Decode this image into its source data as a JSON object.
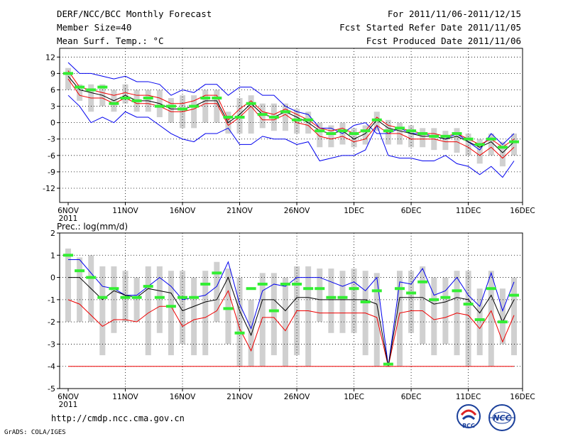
{
  "header": {
    "title": "DERF/NCC/BCC Monthly Forecast",
    "member_size": "Member Size=40",
    "variable": "Mean Surf. Temp.: °C",
    "period": "For 2011/11/06-2011/12/15",
    "started": "Fcst Started Refer Date 2011/11/05",
    "produced": "Fcst Produced Date 2011/11/06"
  },
  "footer": {
    "url": "http://cmdp.ncc.cma.gov.cn",
    "grads": "GrADS: COLA/IGES"
  },
  "logos": {
    "bcc": "BCC",
    "ncc": "NCC"
  },
  "colors": {
    "max": "#0000ee",
    "mean": "#000000",
    "p": "#ee0000",
    "obs": "#33ee33",
    "box": "#d0d0d0"
  },
  "chart_data": [
    {
      "type": "line",
      "title": "Mean Surf. Temp.: °C",
      "ylabel": "°C",
      "ylim": [
        -14.6,
        13.6
      ],
      "yticks": [
        12,
        9,
        6,
        3,
        0,
        -3,
        -6,
        -9,
        -12
      ],
      "xlim": [
        0,
        39
      ],
      "xticks": [
        {
          "pos": 0,
          "label": "6NOV",
          "sub": "2011"
        },
        {
          "pos": 5,
          "label": "11NOV"
        },
        {
          "pos": 10,
          "label": "16NOV"
        },
        {
          "pos": 15,
          "label": "21NOV"
        },
        {
          "pos": 20,
          "label": "26NOV"
        },
        {
          "pos": 25,
          "label": "1DEC"
        },
        {
          "pos": 30,
          "label": "6DEC"
        },
        {
          "pos": 35,
          "label": "11DEC"
        },
        {
          "pos": 40,
          "label": "16DEC"
        }
      ],
      "series": [
        {
          "name": "max",
          "values": [
            11,
            9,
            9,
            8.5,
            8,
            8.5,
            7.5,
            7.5,
            7,
            5,
            6,
            5.5,
            7,
            7,
            5,
            6.5,
            6.5,
            5,
            5,
            3,
            2,
            1.5,
            -1,
            -1,
            -2,
            -0.5,
            0,
            -2,
            -2,
            -1,
            -2,
            -2,
            -2.5,
            -3,
            -2,
            -3.5,
            -5,
            -2,
            -4,
            -2
          ]
        },
        {
          "name": "mean",
          "values": [
            8.5,
            6,
            5.5,
            5,
            4,
            5,
            4,
            4,
            3.5,
            2.5,
            2.5,
            3,
            4,
            4,
            0,
            1.5,
            3.5,
            1.5,
            1,
            2,
            1,
            0,
            -1.5,
            -2,
            -1.5,
            -3,
            -2,
            0.5,
            -1,
            -1.5,
            -2,
            -2.5,
            -2.5,
            -3,
            -2.5,
            -3.5,
            -4.5,
            -3.5,
            -5.5,
            -3.5
          ]
        },
        {
          "name": "p_upper",
          "values": [
            9.5,
            6.5,
            6,
            5.5,
            5,
            5.5,
            5,
            5,
            4.5,
            3.5,
            3.5,
            4,
            5,
            5,
            0.5,
            2.5,
            4,
            2,
            1.5,
            2.5,
            1.5,
            0.5,
            -1,
            -1.5,
            -1,
            -2,
            -1.5,
            1,
            -0.5,
            -1,
            -1.5,
            -2,
            -2,
            -2.5,
            -2,
            -3,
            -4,
            -3,
            -4.5,
            -3
          ]
        },
        {
          "name": "p_lower",
          "values": [
            8,
            5,
            4.5,
            4.5,
            3.5,
            4.5,
            3.5,
            3.5,
            3,
            2,
            2,
            2.5,
            3.5,
            3.5,
            -0.5,
            1,
            3,
            0.5,
            0.5,
            1.5,
            0,
            -0.5,
            -2.5,
            -3,
            -2.5,
            -3.5,
            -3,
            -0.5,
            -2,
            -2,
            -3,
            -3,
            -3,
            -3.5,
            -3.5,
            -4.5,
            -6,
            -4.5,
            -6.5,
            -4.5
          ]
        },
        {
          "name": "min",
          "values": [
            5,
            3,
            0,
            1,
            0,
            2,
            1,
            1,
            -0.5,
            -2,
            -3,
            -3.5,
            -2,
            -2,
            -1,
            -4,
            -4,
            -2.5,
            -3,
            -3,
            -4,
            -3.5,
            -7,
            -6.5,
            -6,
            -6,
            -5,
            -0.5,
            -6,
            -6.5,
            -6.5,
            -7,
            -7,
            -6,
            -7.5,
            -8,
            -9.5,
            -8,
            -10,
            -7
          ]
        },
        {
          "name": "obs",
          "values": [
            9,
            6.5,
            6,
            6.5,
            3.5,
            4.5,
            4,
            4.5,
            3,
            3,
            2.5,
            3,
            4.5,
            4.5,
            1,
            1,
            3.5,
            1.5,
            1,
            2,
            0.5,
            0.5,
            -1.5,
            -2,
            -1.5,
            -2,
            -1.5,
            0.5,
            -1.5,
            -1,
            -1.5,
            -2,
            -2.5,
            -2.5,
            -2,
            -3,
            -4,
            -3,
            -4.5,
            -3.5
          ]
        },
        {
          "name": "box_top",
          "values": [
            10,
            7,
            7,
            7,
            6,
            7,
            6,
            6,
            6,
            4.5,
            5,
            5,
            6,
            6,
            2,
            4.5,
            5,
            3.5,
            3.5,
            3.5,
            2.5,
            2,
            0,
            -0.5,
            0,
            -1,
            -0.5,
            2,
            0.5,
            0,
            -0.5,
            -1,
            -1,
            -1.5,
            -1,
            -2,
            -3,
            -2,
            -3.5,
            -2
          ]
        },
        {
          "name": "box_bottom",
          "values": [
            6,
            4,
            2,
            3,
            2,
            3.5,
            2,
            2,
            1,
            0,
            -1,
            -1,
            0,
            0,
            -2,
            -2,
            -2,
            -1,
            -1.5,
            -1.5,
            -2,
            -2,
            -4.5,
            -4.5,
            -4,
            -4.5,
            -4,
            -1.5,
            -4,
            -4,
            -4.5,
            -4.5,
            -5,
            -5,
            -5.5,
            -6,
            -7.5,
            -6,
            -8,
            -6
          ]
        }
      ]
    },
    {
      "type": "line",
      "title": "Prec.: log(mm/d)",
      "ylabel": "log(mm/d)",
      "ylim": [
        -5,
        2
      ],
      "yticks": [
        2,
        1,
        0,
        -1,
        -2,
        -3,
        -4,
        -5
      ],
      "xlim": [
        0,
        39
      ],
      "xticks": [
        {
          "pos": 0,
          "label": "6NOV",
          "sub": "2011"
        },
        {
          "pos": 5,
          "label": "11NOV"
        },
        {
          "pos": 10,
          "label": "16NOV"
        },
        {
          "pos": 15,
          "label": "21NOV"
        },
        {
          "pos": 20,
          "label": "26NOV"
        },
        {
          "pos": 25,
          "label": "1DEC"
        },
        {
          "pos": 30,
          "label": "6DEC"
        },
        {
          "pos": 35,
          "label": "11DEC"
        },
        {
          "pos": 40,
          "label": "16DEC"
        }
      ],
      "series": [
        {
          "name": "max",
          "values": [
            0.8,
            0.8,
            0.2,
            -0.4,
            -0.5,
            -0.8,
            -0.8,
            -0.4,
            0,
            -0.4,
            -1,
            -0.9,
            -0.8,
            -0.4,
            0.7,
            -1.2,
            -2.3,
            -0.6,
            -0.3,
            -0.4,
            0,
            0,
            0,
            -0.2,
            -0.4,
            -0.2,
            -0.6,
            0,
            -4,
            -0.2,
            -0.3,
            0.4,
            -0.8,
            -0.6,
            0,
            -0.8,
            -1.3,
            0.2,
            -1.5,
            -0.2
          ]
        },
        {
          "name": "mean",
          "values": [
            0,
            0,
            -0.5,
            -1,
            -0.6,
            -0.8,
            -0.9,
            -0.5,
            -0.6,
            -0.7,
            -1.5,
            -1.3,
            -1.1,
            -1,
            0,
            -1.5,
            -2.6,
            -1,
            -1,
            -1.5,
            -0.9,
            -0.9,
            -1,
            -1,
            -1,
            -1,
            -1,
            -1.2,
            -4,
            -0.9,
            -0.9,
            -0.9,
            -1.2,
            -1.1,
            -0.9,
            -1,
            -1.6,
            -0.8,
            -2,
            -1
          ]
        },
        {
          "name": "p_upper",
          "values": [
            -1,
            -1.2,
            -1.7,
            -2.2,
            -1.9,
            -1.9,
            -2,
            -1.6,
            -1.3,
            -1.3,
            -2.2,
            -1.9,
            -1.8,
            -1.5,
            -0.6,
            -2.3,
            -3.3,
            -1.8,
            -1.8,
            -2.4,
            -1.5,
            -1.5,
            -1.6,
            -1.6,
            -1.6,
            -1.6,
            -1.6,
            -1.8,
            -4,
            -1.6,
            -1.5,
            -1.5,
            -1.9,
            -1.8,
            -1.6,
            -1.7,
            -2.3,
            -1.5,
            -2.9,
            -1.7
          ]
        },
        {
          "name": "obs",
          "values": [
            1,
            0.3,
            0,
            -0.9,
            -0.5,
            -0.9,
            -0.9,
            -0.4,
            -0.9,
            -1.3,
            -0.9,
            -0.9,
            -0.3,
            0.2,
            -1.4,
            -2.5,
            -0.5,
            -0.3,
            -1.5,
            -0.3,
            -0.3,
            -0.5,
            -0.5,
            -0.9,
            -0.9,
            -0.5,
            -1.1,
            -0.6,
            -3.9,
            -0.5,
            -0.7,
            -0.2,
            -1,
            -0.9,
            -0.6,
            -1.2,
            -1.9,
            -0.5,
            -2,
            -0.8
          ]
        },
        {
          "name": "box_top",
          "values": [
            1.3,
            0.9,
            1,
            0.5,
            0.5,
            0.3,
            0,
            0.5,
            0.5,
            0.3,
            0.3,
            0,
            0.3,
            0.7,
            0.4,
            0,
            -1,
            0.2,
            0.2,
            0,
            0.5,
            0.5,
            0.4,
            0.4,
            0.3,
            0.4,
            0.3,
            0.2,
            -4,
            0.3,
            0.3,
            0.5,
            0,
            0,
            0.3,
            0.3,
            -0.5,
            0.3,
            -0.5,
            0
          ]
        },
        {
          "name": "box_bottom",
          "values": [
            -2,
            -2,
            -2,
            -3.5,
            -2.5,
            -2,
            -2,
            -3.5,
            -2.5,
            -3.5,
            -3,
            -3.5,
            -3.5,
            -2,
            -3,
            -4,
            -4,
            -4,
            -3.5,
            -4,
            -3.5,
            -4,
            -2,
            -2.5,
            -2.5,
            -2.5,
            -3.5,
            -4,
            -4,
            -4,
            -2.5,
            -3,
            -3.5,
            -3,
            -3.5,
            -4,
            -3.5,
            -4,
            -3,
            -3.5
          ]
        }
      ]
    }
  ]
}
